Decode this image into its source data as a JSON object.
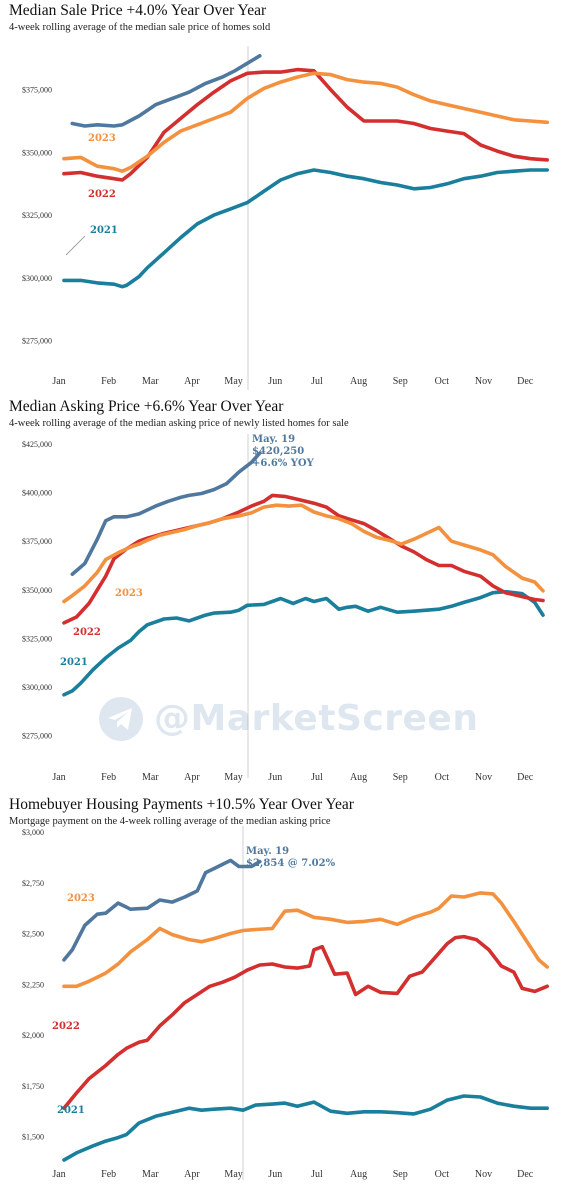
{
  "chart_data": [
    {
      "type": "line",
      "title": "Median Sale Price +4.0% Year Over Year",
      "subtitle": "4-week rolling average of the median sale price of homes sold",
      "categories": [
        "Jan",
        "Feb",
        "Mar",
        "Apr",
        "May",
        "Jun",
        "Jul",
        "Aug",
        "Sep",
        "Oct",
        "Nov",
        "Dec"
      ],
      "ylim": [
        262500,
        390000
      ],
      "yticks": [
        275000,
        300000,
        325000,
        350000,
        375000
      ],
      "ytick_labels": [
        "$275,000",
        "$300,000",
        "$325,000",
        "$350,000",
        "$375,000"
      ],
      "series": [
        {
          "name": "2021",
          "color": "#1a7f9c",
          "x": [
            0,
            0.4,
            0.8,
            1.2,
            1.4,
            1.5,
            1.8,
            2,
            2.4,
            2.8,
            3.2,
            3.6,
            4,
            4.4,
            4.8,
            5.2,
            5.6,
            6,
            6.4,
            6.8,
            7.2,
            7.6,
            8,
            8.4,
            8.8,
            9.2,
            9.6,
            10,
            10.4,
            10.8,
            11.2,
            11.6
          ],
          "values": [
            299000,
            299000,
            298000,
            297500,
            296500,
            297000,
            300500,
            304000,
            310000,
            316000,
            321500,
            325000,
            327500,
            330000,
            334500,
            339000,
            341500,
            343000,
            342000,
            340500,
            339500,
            338000,
            337000,
            335500,
            336000,
            337500,
            339500,
            340500,
            342000,
            342500,
            343000,
            343000
          ]
        },
        {
          "name": "2022",
          "color": "#d32f2f",
          "x": [
            0,
            0.4,
            0.8,
            1.2,
            1.4,
            1.6,
            2,
            2.4,
            2.8,
            3.2,
            3.6,
            4,
            4.4,
            4.8,
            5.2,
            5.6,
            6,
            6.4,
            6.8,
            7.2,
            7.6,
            8,
            8.4,
            8.8,
            9.2,
            9.6,
            10,
            10.4,
            10.8,
            11.2,
            11.6
          ],
          "values": [
            341500,
            342000,
            340500,
            339500,
            339000,
            341500,
            348000,
            358000,
            363500,
            369000,
            374000,
            378500,
            381500,
            382000,
            382000,
            383000,
            382500,
            375000,
            368000,
            362500,
            362500,
            362500,
            361500,
            359500,
            358500,
            357500,
            353000,
            350500,
            348500,
            347500,
            347000
          ]
        },
        {
          "name": "2023",
          "color": "#f4913e",
          "x": [
            0,
            0.4,
            0.8,
            1.2,
            1.4,
            1.6,
            2,
            2.4,
            2.8,
            3.2,
            3.6,
            4,
            4.4,
            4.8,
            5.2,
            5.6,
            6,
            6.4,
            6.8,
            7.2,
            7.6,
            8,
            8.4,
            8.8,
            9.2,
            9.6,
            10,
            10.4,
            10.8,
            11.2,
            11.6
          ],
          "values": [
            347500,
            348000,
            344500,
            343500,
            342500,
            344000,
            348500,
            354000,
            358500,
            361000,
            363500,
            366000,
            371500,
            375500,
            378000,
            380000,
            381500,
            381000,
            379000,
            378000,
            377500,
            376000,
            373000,
            370500,
            369000,
            367500,
            366000,
            364500,
            363000,
            362500,
            362000
          ]
        },
        {
          "name": "2023",
          "color": "#50789f",
          "x": [
            0.2,
            0.5,
            0.8,
            1.2,
            1.4,
            1.8,
            2.2,
            2.6,
            3,
            3.4,
            3.8,
            4.1,
            4.4,
            4.7
          ],
          "values": [
            361500,
            360500,
            361000,
            360500,
            361000,
            364500,
            369000,
            371500,
            374000,
            377500,
            380000,
            382500,
            385500,
            388500
          ]
        }
      ],
      "series_labels": [
        "2023",
        "2022",
        "2021"
      ]
    },
    {
      "type": "line",
      "title": "Median Asking Price +6.6% Year Over Year",
      "subtitle": "4-week rolling average of the median asking price of newly listed homes for sale",
      "categories": [
        "Jan",
        "Feb",
        "Mar",
        "Apr",
        "May",
        "Jun",
        "Jul",
        "Aug",
        "Sep",
        "Oct",
        "Nov",
        "Dec"
      ],
      "ylim": [
        262500,
        427000
      ],
      "yticks": [
        275000,
        300000,
        325000,
        350000,
        375000,
        400000,
        425000
      ],
      "ytick_labels": [
        "$275,000",
        "$300,000",
        "$325,000",
        "$350,000",
        "$375,000",
        "$400,000",
        "$425,000"
      ],
      "series": [
        {
          "name": "2021",
          "color": "#1a7f9c",
          "x": [
            0,
            0.2,
            0.4,
            0.7,
            1,
            1.3,
            1.6,
            1.8,
            2,
            2.2,
            2.4,
            2.7,
            3,
            3.2,
            3.4,
            3.6,
            4,
            4.2,
            4.4,
            4.8,
            5.2,
            5.5,
            5.8,
            6,
            6.3,
            6.6,
            6.8,
            7,
            7.3,
            7.6,
            8,
            8.4,
            8.7,
            9,
            9.3,
            9.6,
            10,
            10.3,
            10.6,
            11,
            11.3,
            11.5
          ],
          "values": [
            296000,
            298000,
            302000,
            309000,
            315000,
            320000,
            324000,
            328500,
            332000,
            333500,
            335000,
            335500,
            334000,
            335500,
            337000,
            338000,
            338500,
            339500,
            342000,
            342500,
            345500,
            343000,
            345500,
            344000,
            345500,
            340000,
            341000,
            341500,
            339000,
            341000,
            338500,
            339000,
            339500,
            340000,
            341500,
            343500,
            346000,
            348500,
            349000,
            348000,
            343500,
            337000
          ]
        },
        {
          "name": "2022",
          "color": "#d32f2f",
          "x": [
            0,
            0.3,
            0.6,
            1,
            1.2,
            1.5,
            1.8,
            2,
            2.4,
            2.8,
            3.2,
            3.5,
            3.8,
            4.2,
            4.5,
            4.8,
            5,
            5.3,
            5.6,
            6,
            6.3,
            6.6,
            6.9,
            7.2,
            7.5,
            7.8,
            8.1,
            8.4,
            8.7,
            9,
            9.3,
            9.6,
            10,
            10.3,
            10.6,
            11,
            11.3,
            11.5
          ],
          "values": [
            333000,
            336000,
            343000,
            357000,
            366000,
            371000,
            375000,
            376500,
            379000,
            381000,
            383000,
            384500,
            386500,
            390000,
            393000,
            395500,
            398500,
            398000,
            396500,
            394500,
            392500,
            388000,
            386000,
            384000,
            380500,
            376500,
            372500,
            369500,
            365500,
            362500,
            362500,
            359500,
            357000,
            352000,
            348500,
            346500,
            345000,
            344500
          ]
        },
        {
          "name": "2023",
          "color": "#f4913e",
          "x": [
            0,
            0.2,
            0.5,
            0.8,
            1,
            1.3,
            1.6,
            1.8,
            2,
            2.3,
            2.6,
            2.9,
            3.2,
            3.5,
            3.8,
            4.2,
            4.5,
            4.8,
            5.1,
            5.4,
            5.7,
            6,
            6.3,
            6.6,
            6.9,
            7.2,
            7.5,
            7.8,
            8.1,
            8.4,
            8.7,
            9,
            9.3,
            9.6,
            10,
            10.3,
            10.6,
            11,
            11.3,
            11.5
          ],
          "values": [
            344000,
            347000,
            352000,
            359000,
            365500,
            369000,
            372000,
            373500,
            375500,
            378000,
            379500,
            381000,
            383000,
            384500,
            386500,
            388000,
            389500,
            392500,
            393500,
            393000,
            393500,
            390000,
            388000,
            386500,
            384000,
            380000,
            377000,
            375500,
            373500,
            376000,
            379000,
            382000,
            375000,
            373000,
            370500,
            368000,
            362000,
            356000,
            354000,
            349500
          ]
        },
        {
          "name": "2023",
          "color": "#50789f",
          "x": [
            0.2,
            0.5,
            0.8,
            1,
            1.2,
            1.5,
            1.8,
            2.2,
            2.5,
            2.8,
            3,
            3.3,
            3.6,
            3.9,
            4.2,
            4.5,
            4.7
          ],
          "values": [
            358000,
            363500,
            376000,
            385500,
            387500,
            387500,
            389000,
            393000,
            395500,
            397500,
            398500,
            399500,
            401500,
            404500,
            410500,
            415500,
            420250
          ]
        }
      ],
      "series_labels": [
        "2023",
        "2022",
        "2021"
      ],
      "annotation": [
        "May. 19",
        "$420,250",
        "+6.6% YOY"
      ]
    },
    {
      "type": "line",
      "title": "Homebuyer Housing Payments +10.5% Year Over Year",
      "subtitle": "Mortgage payment on the 4-week rolling average of the median asking price",
      "categories": [
        "Jan",
        "Feb",
        "Mar",
        "Apr",
        "May",
        "Jun",
        "Jul",
        "Aug",
        "Sep",
        "Oct",
        "Nov",
        "Dec"
      ],
      "ylim": [
        1375,
        3000
      ],
      "yticks": [
        1500,
        1750,
        2000,
        2250,
        2500,
        2750,
        3000
      ],
      "ytick_labels": [
        "$1,500",
        "$1,750",
        "$2,000",
        "$2,250",
        "$2,500",
        "$2,750",
        "$3,000"
      ],
      "series": [
        {
          "name": "2021",
          "color": "#1a7f9c",
          "x": [
            0,
            0.3,
            0.7,
            1,
            1.3,
            1.5,
            1.8,
            2.2,
            2.6,
            3,
            3.3,
            3.6,
            4,
            4.3,
            4.6,
            5,
            5.3,
            5.6,
            6,
            6.4,
            6.8,
            7.2,
            7.6,
            8,
            8.4,
            8.8,
            9.2,
            9.6,
            10,
            10.4,
            10.8,
            11.2,
            11.6
          ],
          "values": [
            1385,
            1420,
            1455,
            1478,
            1495,
            1510,
            1567,
            1600,
            1620,
            1640,
            1630,
            1635,
            1640,
            1630,
            1655,
            1660,
            1665,
            1650,
            1670,
            1625,
            1615,
            1622,
            1622,
            1618,
            1612,
            1635,
            1680,
            1700,
            1695,
            1665,
            1650,
            1640,
            1640
          ]
        },
        {
          "name": "2022",
          "color": "#d32f2f",
          "x": [
            0,
            0.3,
            0.6,
            1,
            1.3,
            1.5,
            1.8,
            2,
            2.3,
            2.6,
            2.9,
            3.2,
            3.5,
            3.8,
            4.1,
            4.4,
            4.7,
            5,
            5.3,
            5.6,
            5.9,
            6,
            6.2,
            6.5,
            6.8,
            7,
            7.3,
            7.6,
            8,
            8.3,
            8.6,
            8.9,
            9.2,
            9.4,
            9.6,
            9.9,
            10.2,
            10.5,
            10.8,
            11,
            11.3,
            11.6
          ],
          "values": [
            1640,
            1715,
            1785,
            1850,
            1905,
            1935,
            1965,
            1975,
            2045,
            2100,
            2160,
            2200,
            2240,
            2260,
            2285,
            2320,
            2345,
            2350,
            2335,
            2330,
            2340,
            2420,
            2435,
            2300,
            2305,
            2200,
            2240,
            2210,
            2205,
            2290,
            2310,
            2380,
            2450,
            2480,
            2485,
            2470,
            2420,
            2340,
            2310,
            2230,
            2215,
            2240
          ]
        },
        {
          "name": "2023",
          "color": "#f4913e",
          "x": [
            0,
            0.3,
            0.6,
            1,
            1.3,
            1.6,
            2,
            2.3,
            2.6,
            3,
            3.3,
            3.6,
            4,
            4.3,
            4.6,
            5,
            5.3,
            5.6,
            6,
            6.4,
            6.8,
            7.2,
            7.6,
            8,
            8.4,
            8.8,
            9,
            9.3,
            9.6,
            10,
            10.3,
            10.5,
            10.8,
            11.1,
            11.4,
            11.6
          ],
          "values": [
            2240,
            2240,
            2265,
            2305,
            2350,
            2410,
            2470,
            2525,
            2495,
            2470,
            2460,
            2475,
            2500,
            2515,
            2520,
            2525,
            2610,
            2615,
            2580,
            2570,
            2555,
            2560,
            2570,
            2545,
            2580,
            2605,
            2625,
            2685,
            2680,
            2700,
            2695,
            2650,
            2560,
            2465,
            2370,
            2335
          ]
        },
        {
          "name": "2023",
          "color": "#50789f",
          "x": [
            0,
            0.2,
            0.5,
            0.8,
            1,
            1.3,
            1.6,
            2,
            2.3,
            2.6,
            2.9,
            3.2,
            3.4,
            3.6,
            4,
            4.2,
            4.5,
            4.7
          ],
          "values": [
            2370,
            2420,
            2540,
            2595,
            2600,
            2650,
            2620,
            2625,
            2665,
            2655,
            2680,
            2710,
            2800,
            2820,
            2860,
            2830,
            2830,
            2854
          ]
        }
      ],
      "series_labels": [
        "2023",
        "2022",
        "2021"
      ],
      "annotation": [
        "May. 19",
        "$2,854 @ 7.02%"
      ]
    }
  ],
  "watermark": "@MarketScreen"
}
